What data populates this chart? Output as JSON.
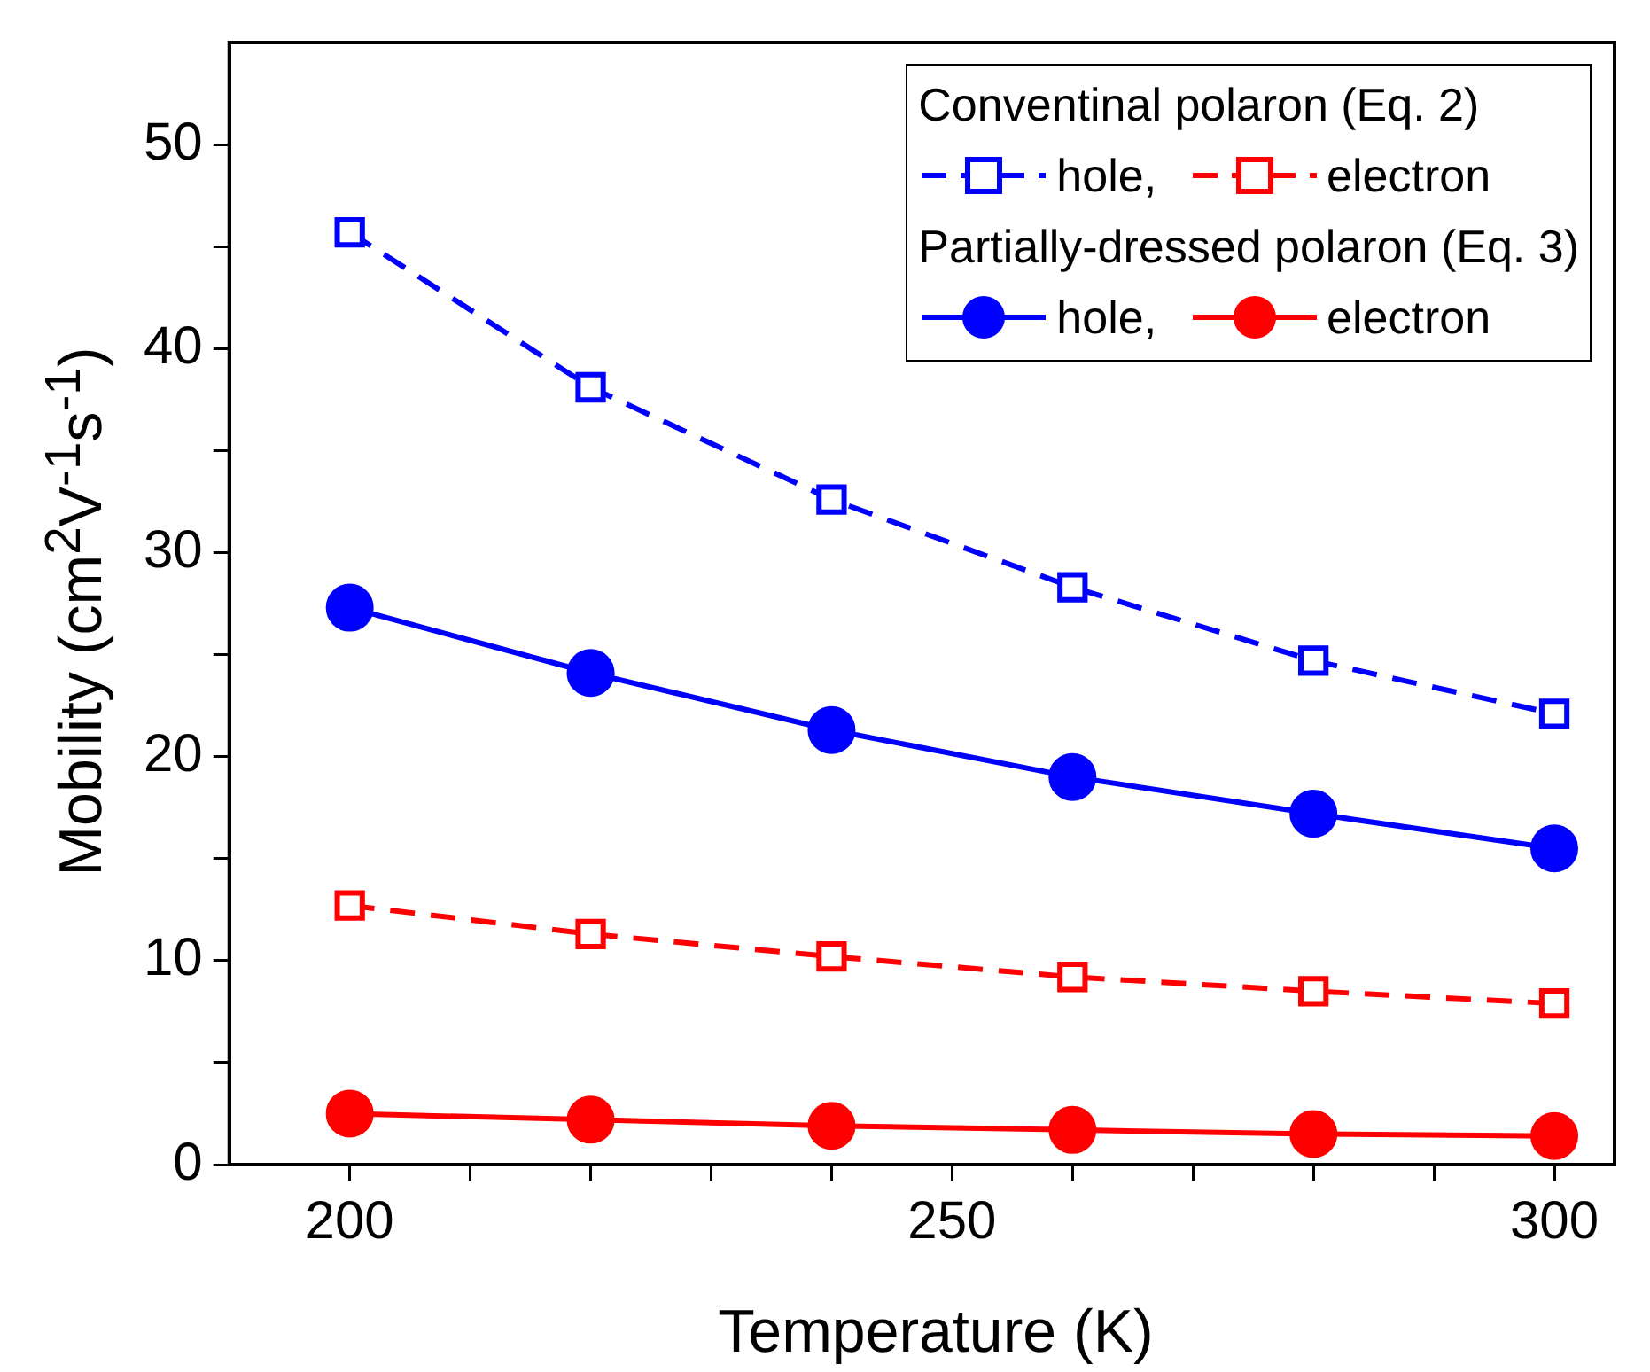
{
  "chart_data": {
    "type": "line",
    "xlabel": "Temperature (K)",
    "ylabel": "Mobility (cm$^{2}$V$^{-1}$s$^{-1}$)",
    "annotations": [
      "Conventinal polaron (Eq. 2)",
      "Partially-dressed polaron (Eq. 3)"
    ],
    "x": [
      200,
      220,
      240,
      260,
      280,
      300
    ],
    "xlim": [
      190,
      305
    ],
    "xticks": [
      200,
      {
        "value": 210,
        "label": null
      },
      {
        "value": 220,
        "label": null
      },
      {
        "value": 230,
        "label": null
      },
      {
        "value": 240,
        "label": null
      },
      250,
      {
        "value": 260,
        "label": null
      },
      {
        "value": 270,
        "label": null
      },
      {
        "value": 280,
        "label": null
      },
      {
        "value": 290,
        "label": null
      },
      300
    ],
    "ylim": [
      0,
      55
    ],
    "yticks": [
      0,
      {
        "value": 5,
        "label": null
      },
      10,
      {
        "value": 15,
        "label": null
      },
      20,
      {
        "value": 25,
        "label": null
      },
      30,
      {
        "value": 35,
        "label": null
      },
      40,
      {
        "value": 45,
        "label": null
      },
      50
    ],
    "grid": false,
    "legend": "top right",
    "series": [
      {
        "name": "hole,",
        "color": "#0000ff",
        "marker": "square",
        "line_style": "dashed",
        "values": [
          45.7,
          38.1,
          32.6,
          28.3,
          24.7,
          22.1
        ]
      },
      {
        "name": "electron",
        "color": "#ff0000",
        "marker": "square",
        "line_style": "dashed",
        "values": [
          12.7,
          11.3,
          10.2,
          9.2,
          8.5,
          7.9
        ]
      },
      {
        "name": "hole,",
        "color": "#0000ff",
        "marker": "circle",
        "line_style": "solid",
        "values": [
          27.3,
          24.1,
          21.3,
          19.0,
          17.2,
          15.5
        ]
      },
      {
        "name": "electron",
        "color": "#ff0000",
        "marker": "circle",
        "line_style": "solid",
        "values": [
          2.5,
          2.2,
          1.9,
          1.7,
          1.5,
          1.4
        ]
      }
    ]
  }
}
